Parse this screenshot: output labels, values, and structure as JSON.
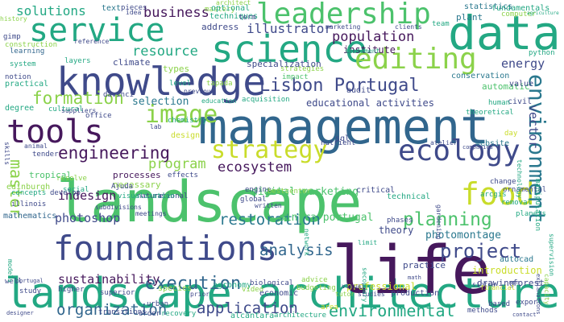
{
  "palette": {
    "yellow": "#c9dc2a",
    "lime": "#8bd24a",
    "green": "#4cc26c",
    "teal": "#23a883",
    "blue": "#2a788e",
    "steel": "#31668d",
    "indigo": "#3f4a8a",
    "purple": "#46185c"
  },
  "words": [
    {
      "id": "w1",
      "text": "landscape architecture",
      "color": "teal"
    },
    {
      "id": "w2",
      "text": "landscape",
      "color": "green"
    },
    {
      "id": "w3",
      "text": "management",
      "color": "steel"
    },
    {
      "id": "w4",
      "text": "life",
      "color": "purple"
    },
    {
      "id": "w5",
      "text": "data",
      "color": "teal"
    },
    {
      "id": "w6",
      "text": "knowledge",
      "color": "indigo"
    },
    {
      "id": "w7",
      "text": "science",
      "color": "teal"
    },
    {
      "id": "w8",
      "text": "service",
      "color": "teal"
    },
    {
      "id": "w9",
      "text": "leadership",
      "color": "green"
    },
    {
      "id": "w10",
      "text": "foundations",
      "color": "indigo"
    },
    {
      "id": "w11",
      "text": "tools",
      "color": "purple"
    },
    {
      "id": "w12",
      "text": "editing",
      "color": "lime"
    },
    {
      "id": "w13",
      "text": "ecology",
      "color": "indigo"
    },
    {
      "id": "w14",
      "text": "strategy",
      "color": "yellow"
    },
    {
      "id": "w15",
      "text": "food",
      "color": "yellow"
    },
    {
      "id": "w16",
      "text": "image",
      "color": "lime"
    },
    {
      "id": "w17",
      "text": "environment",
      "color": "blue"
    },
    {
      "id": "w18",
      "text": "Lisbon Portugal",
      "color": "indigo"
    },
    {
      "id": "w19",
      "text": "engineering",
      "color": "purple"
    },
    {
      "id": "w20",
      "text": "execution",
      "color": "steel"
    },
    {
      "id": "w21",
      "text": "planning",
      "color": "green"
    },
    {
      "id": "w22",
      "text": "project",
      "color": "indigo"
    },
    {
      "id": "w23",
      "text": "environmental",
      "color": "teal"
    },
    {
      "id": "w24",
      "text": "application",
      "color": "indigo"
    },
    {
      "id": "w25",
      "text": "organization",
      "color": "steel"
    },
    {
      "id": "w26",
      "text": "restoration",
      "color": "blue"
    },
    {
      "id": "w27",
      "text": "analysis",
      "color": "steel"
    },
    {
      "id": "w28",
      "text": "formation",
      "color": "lime"
    },
    {
      "id": "w29",
      "text": "master",
      "color": "lime"
    },
    {
      "id": "w30",
      "text": "population",
      "color": "purple"
    },
    {
      "id": "w31",
      "text": "business",
      "color": "purple"
    },
    {
      "id": "w32",
      "text": "resource",
      "color": "teal"
    },
    {
      "id": "w33",
      "text": "program",
      "color": "lime"
    },
    {
      "id": "w34",
      "text": "ecosystem",
      "color": "purple"
    },
    {
      "id": "w35",
      "text": "energy",
      "color": "indigo"
    },
    {
      "id": "w36",
      "text": "vector",
      "color": "indigo"
    },
    {
      "id": "w37",
      "text": "sustainability",
      "color": "purple"
    },
    {
      "id": "w38",
      "text": "photoshop",
      "color": "indigo"
    },
    {
      "id": "w39",
      "text": "indesign",
      "color": "purple"
    },
    {
      "id": "w40",
      "text": "illustrator",
      "color": "indigo"
    },
    {
      "id": "w41",
      "text": "solutions",
      "color": "teal"
    },
    {
      "id": "w42",
      "text": "selection",
      "color": "blue"
    },
    {
      "id": "w43",
      "text": "digital marketing",
      "color": "green"
    },
    {
      "id": "w44",
      "text": "photomontage",
      "color": "blue"
    },
    {
      "id": "w45",
      "text": "sintra portugal",
      "color": "green"
    },
    {
      "id": "w46",
      "text": "institute",
      "color": "purple"
    },
    {
      "id": "w47",
      "text": "educational activities",
      "color": "indigo"
    },
    {
      "id": "w48",
      "text": "specialization",
      "color": "indigo"
    },
    {
      "id": "w49",
      "text": "fundamentals",
      "color": "teal"
    },
    {
      "id": "w50",
      "text": "statistics",
      "color": "blue"
    },
    {
      "id": "w51",
      "text": "plant",
      "color": "blue"
    },
    {
      "id": "w52",
      "text": "conservation",
      "color": "blue"
    },
    {
      "id": "w53",
      "text": "automatic",
      "color": "green"
    },
    {
      "id": "w54",
      "text": "processes",
      "color": "purple"
    },
    {
      "id": "w55",
      "text": "necessary",
      "color": "lime"
    },
    {
      "id": "w56",
      "text": "website",
      "color": "blue"
    },
    {
      "id": "w57",
      "text": "technical",
      "color": "teal"
    },
    {
      "id": "w58",
      "text": "theory",
      "color": "indigo"
    },
    {
      "id": "w59",
      "text": "professional",
      "color": "yellow"
    },
    {
      "id": "w60",
      "text": "practice",
      "color": "indigo"
    },
    {
      "id": "w61",
      "text": "introduction",
      "color": "yellow"
    },
    {
      "id": "w62",
      "text": "production",
      "color": "indigo"
    },
    {
      "id": "w63",
      "text": "agronomy",
      "color": "teal"
    },
    {
      "id": "w64",
      "text": "economic",
      "color": "indigo"
    },
    {
      "id": "w65",
      "text": "drawing",
      "color": "indigo"
    },
    {
      "id": "w66",
      "text": "forest",
      "color": "indigo"
    },
    {
      "id": "w67",
      "text": "autocad",
      "color": "blue"
    },
    {
      "id": "w68",
      "text": "mathematics",
      "color": "steel"
    },
    {
      "id": "w69",
      "text": "climate",
      "color": "indigo"
    },
    {
      "id": "w70",
      "text": "types",
      "color": "lime"
    },
    {
      "id": "w71",
      "text": "address",
      "color": "indigo"
    },
    {
      "id": "w72",
      "text": "techniques",
      "color": "teal"
    },
    {
      "id": "w73",
      "text": "mastery",
      "color": "lime"
    },
    {
      "id": "w74",
      "text": "text",
      "color": "blue"
    },
    {
      "id": "w75",
      "text": "pieces",
      "color": "indigo"
    },
    {
      "id": "w76",
      "text": "optional",
      "color": "teal"
    },
    {
      "id": "w77",
      "text": "term",
      "color": "indigo"
    },
    {
      "id": "w78",
      "text": "history",
      "color": "lime"
    },
    {
      "id": "w79",
      "text": "gimp",
      "color": "indigo"
    },
    {
      "id": "w80",
      "text": "learning",
      "color": "steel"
    },
    {
      "id": "w81",
      "text": "system",
      "color": "teal"
    },
    {
      "id": "w82",
      "text": "notion",
      "color": "indigo"
    },
    {
      "id": "w83",
      "text": "practical",
      "color": "teal"
    },
    {
      "id": "w84",
      "text": "degree",
      "color": "teal"
    },
    {
      "id": "w85",
      "text": "cultural",
      "color": "teal"
    },
    {
      "id": "w86",
      "text": "office",
      "color": "indigo"
    },
    {
      "id": "w87",
      "text": "davinci",
      "color": "indigo"
    },
    {
      "id": "w88",
      "text": "level",
      "color": "teal"
    },
    {
      "id": "w89",
      "text": "tapada",
      "color": "lime"
    },
    {
      "id": "w90",
      "text": "impact",
      "color": "green"
    },
    {
      "id": "w91",
      "text": "strategies",
      "color": "lime"
    },
    {
      "id": "w92",
      "text": "audit",
      "color": "indigo"
    },
    {
      "id": "w93",
      "text": "acquisition",
      "color": "teal"
    },
    {
      "id": "w94",
      "text": "statement",
      "color": "teal"
    },
    {
      "id": "w95",
      "text": "marketing",
      "color": "indigo"
    },
    {
      "id": "w96",
      "text": "team",
      "color": "teal"
    },
    {
      "id": "w97",
      "text": "computer",
      "color": "lime"
    },
    {
      "id": "w98",
      "text": "agriculture",
      "color": "teal"
    },
    {
      "id": "w99",
      "text": "python",
      "color": "teal"
    },
    {
      "id": "w100",
      "text": "value",
      "color": "indigo"
    },
    {
      "id": "w101",
      "text": "civil",
      "color": "indigo"
    },
    {
      "id": "w102",
      "text": "human",
      "color": "teal"
    },
    {
      "id": "w103",
      "text": "theoretical",
      "color": "teal"
    },
    {
      "id": "w104",
      "text": "tender",
      "color": "indigo"
    },
    {
      "id": "w105",
      "text": "resolve",
      "color": "lime"
    },
    {
      "id": "w106",
      "text": "tropical",
      "color": "green"
    },
    {
      "id": "w107",
      "text": "social",
      "color": "teal"
    },
    {
      "id": "w108",
      "text": "edinburgh",
      "color": "lime"
    },
    {
      "id": "w109",
      "text": "concepts",
      "color": "teal"
    },
    {
      "id": "w110",
      "text": "develop",
      "color": "indigo"
    },
    {
      "id": "w111",
      "text": "nature",
      "color": "indigo"
    },
    {
      "id": "w112",
      "text": "rational",
      "color": "indigo"
    },
    {
      "id": "w113",
      "text": "design",
      "color": "yellow"
    },
    {
      "id": "w114",
      "text": "chemistry",
      "color": "teal"
    },
    {
      "id": "w115",
      "text": "visualization",
      "color": "teal"
    },
    {
      "id": "w116",
      "text": "effects",
      "color": "indigo"
    },
    {
      "id": "w117",
      "text": "global",
      "color": "indigo"
    },
    {
      "id": "w118",
      "text": "sql",
      "color": "indigo"
    },
    {
      "id": "w119",
      "text": "critical",
      "color": "indigo"
    },
    {
      "id": "w120",
      "text": "phases",
      "color": "indigo"
    },
    {
      "id": "w121",
      "text": "removal",
      "color": "teal"
    },
    {
      "id": "w122",
      "text": "planets",
      "color": "teal"
    },
    {
      "id": "w123",
      "text": "arcgis",
      "color": "teal"
    },
    {
      "id": "w124",
      "text": "change",
      "color": "indigo"
    },
    {
      "id": "w125",
      "text": "day",
      "color": "yellow"
    },
    {
      "id": "w126",
      "text": "Ajuda",
      "color": "indigo"
    },
    {
      "id": "w127",
      "text": "illinois",
      "color": "indigo"
    },
    {
      "id": "w128",
      "text": "well",
      "color": "indigo"
    },
    {
      "id": "w129",
      "text": "study",
      "color": "indigo"
    },
    {
      "id": "w130",
      "text": "higher",
      "color": "indigo"
    },
    {
      "id": "w131",
      "text": "superior",
      "color": "indigo"
    },
    {
      "id": "w132",
      "text": "urban",
      "color": "indigo"
    },
    {
      "id": "w133",
      "text": "order",
      "color": "indigo"
    },
    {
      "id": "w134",
      "text": "recovery",
      "color": "teal"
    },
    {
      "id": "w135",
      "text": "alcântara",
      "color": "teal"
    },
    {
      "id": "w136",
      "text": "architecture",
      "color": "teal"
    },
    {
      "id": "w137",
      "text": "area",
      "color": "yellow"
    },
    {
      "id": "w138",
      "text": "methods",
      "color": "indigo"
    },
    {
      "id": "w139",
      "text": "based",
      "color": "indigo"
    },
    {
      "id": "w140",
      "text": "export",
      "color": "indigo"
    },
    {
      "id": "w141",
      "text": "contact",
      "color": "indigo"
    },
    {
      "id": "w142",
      "text": "sintra",
      "color": "indigo"
    },
    {
      "id": "w143",
      "text": "species",
      "color": "lime"
    },
    {
      "id": "w144",
      "text": "prior",
      "color": "indigo"
    },
    {
      "id": "w145",
      "text": "biological",
      "color": "indigo"
    },
    {
      "id": "w146",
      "text": "budgeting",
      "color": "lime"
    },
    {
      "id": "w147",
      "text": "advice",
      "color": "lime"
    },
    {
      "id": "w148",
      "text": "tutor",
      "color": "lime"
    },
    {
      "id": "w149",
      "text": "visual",
      "color": "indigo"
    },
    {
      "id": "w150",
      "text": "ornamental",
      "color": "indigo"
    },
    {
      "id": "w151",
      "text": "gardening",
      "color": "indigo"
    },
    {
      "id": "w152",
      "text": "manipulation",
      "color": "teal"
    },
    {
      "id": "w153",
      "text": "technology",
      "color": "teal"
    },
    {
      "id": "w154",
      "text": "supervision",
      "color": "teal"
    },
    {
      "id": "w155",
      "text": "capacity",
      "color": "lime"
    },
    {
      "id": "w156",
      "text": "financial",
      "color": "yellow"
    },
    {
      "id": "w157",
      "text": "explanations",
      "color": "indigo"
    },
    {
      "id": "w158",
      "text": "skills",
      "color": "indigo"
    },
    {
      "id": "w159",
      "text": "models",
      "color": "teal"
    },
    {
      "id": "w160",
      "text": "engine",
      "color": "indigo"
    },
    {
      "id": "w161",
      "text": "limit",
      "color": "teal"
    },
    {
      "id": "w162",
      "text": "network",
      "color": "teal"
    },
    {
      "id": "w163",
      "text": "secondary",
      "color": "teal"
    },
    {
      "id": "w164",
      "text": "bestcenter",
      "color": "lime"
    },
    {
      "id": "w165",
      "text": "written",
      "color": "indigo"
    },
    {
      "id": "w166",
      "text": "transitions",
      "color": "indigo"
    },
    {
      "id": "w167",
      "text": "designer",
      "color": "indigo"
    },
    {
      "id": "w168",
      "text": "construction",
      "color": "lime"
    },
    {
      "id": "w169",
      "text": "reference",
      "color": "indigo"
    },
    {
      "id": "w170",
      "text": "architect",
      "color": "lime"
    },
    {
      "id": "w171",
      "text": "clients",
      "color": "indigo"
    },
    {
      "id": "w172",
      "text": "portugal",
      "color": "indigo"
    },
    {
      "id": "w173",
      "text": "previous",
      "color": "indigo"
    },
    {
      "id": "w174",
      "text": "education",
      "color": "teal"
    },
    {
      "id": "w175",
      "text": "suppliers",
      "color": "indigo"
    },
    {
      "id": "w176",
      "text": "lab",
      "color": "indigo"
    },
    {
      "id": "w177",
      "text": "animal",
      "color": "indigo"
    },
    {
      "id": "w178",
      "text": "companies",
      "color": "indigo"
    },
    {
      "id": "w179",
      "text": "atelier",
      "color": "indigo"
    },
    {
      "id": "w180",
      "text": "video",
      "color": "lime"
    },
    {
      "id": "w181",
      "text": "studies",
      "color": "indigo"
    },
    {
      "id": "w182",
      "text": "men",
      "color": "indigo"
    },
    {
      "id": "w183",
      "text": "idea",
      "color": "indigo"
    },
    {
      "id": "w184",
      "text": "nutrient",
      "color": "indigo"
    },
    {
      "id": "w185",
      "text": "layers",
      "color": "teal"
    },
    {
      "id": "w186",
      "text": "subdivisions",
      "color": "indigo"
    },
    {
      "id": "w187",
      "text": "meetings",
      "color": "indigo"
    },
    {
      "id": "w188",
      "text": "math",
      "color": "indigo"
    }
  ]
}
